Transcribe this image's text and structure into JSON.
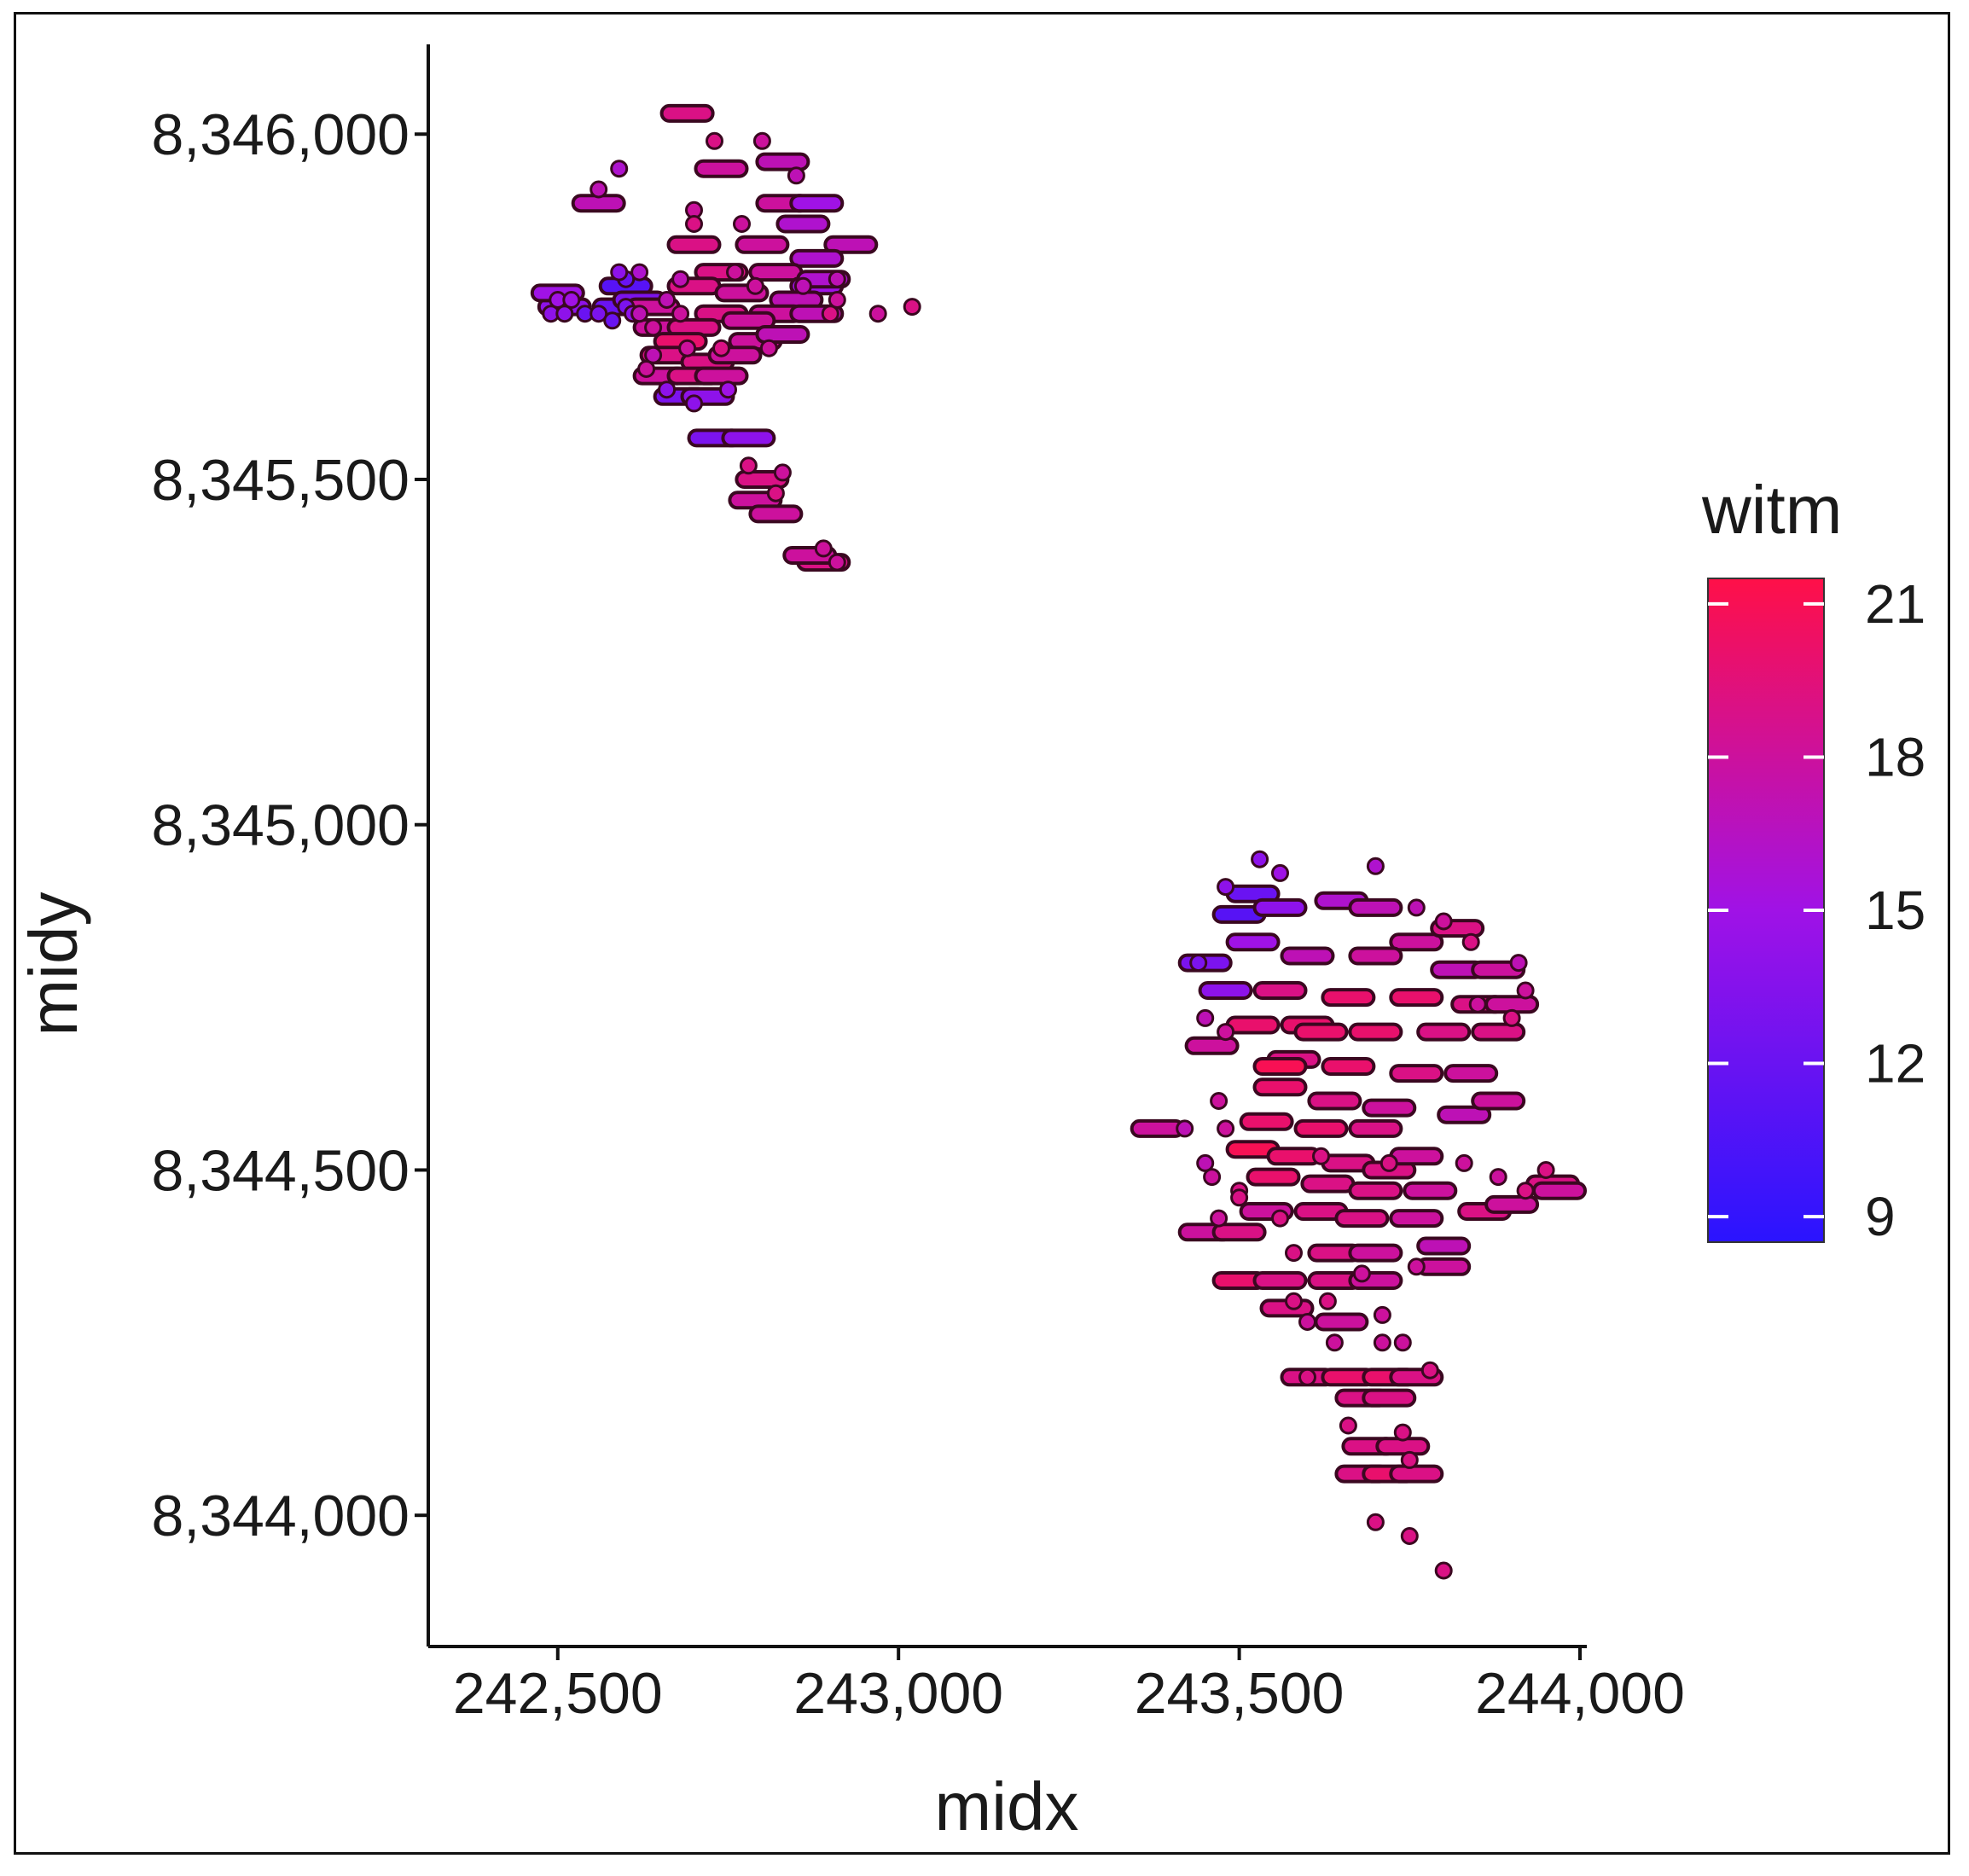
{
  "chart_data": {
    "type": "scatter",
    "xlabel": "midx",
    "ylabel": "midy",
    "x_ticks": [
      242500,
      243000,
      243500,
      244000
    ],
    "x_tick_labels": [
      "242,500",
      "243,000",
      "243,500",
      "244,000"
    ],
    "y_ticks": [
      8344000,
      8344500,
      8345000,
      8345500,
      8346000
    ],
    "y_tick_labels": [
      "8,344,000",
      "8,344,500",
      "8,345,000",
      "8,345,500",
      "8,346,000"
    ],
    "xlim": [
      242310,
      244010
    ],
    "ylim": [
      8343810,
      8346130
    ],
    "legend": {
      "title": "witm",
      "min": 8.5,
      "max": 21.5,
      "ticks": [
        9,
        12,
        15,
        18,
        21
      ],
      "colors": [
        "#2a14ff",
        "#a012e6",
        "#ff1048"
      ],
      "placement": "right"
    },
    "series": [
      {
        "marker": "dash",
        "points": [
          [
            242690,
            8346030,
            19
          ],
          [
            242740,
            8345950,
            18
          ],
          [
            242830,
            8345960,
            17
          ],
          [
            242830,
            8345900,
            18
          ],
          [
            242560,
            8345900,
            17
          ],
          [
            242860,
            8345870,
            16
          ],
          [
            242880,
            8345900,
            15
          ],
          [
            242700,
            8345840,
            19
          ],
          [
            242800,
            8345840,
            18
          ],
          [
            242930,
            8345840,
            17
          ],
          [
            242880,
            8345820,
            16
          ],
          [
            242740,
            8345800,
            19
          ],
          [
            242820,
            8345800,
            18
          ],
          [
            242880,
            8345780,
            15
          ],
          [
            242890,
            8345790,
            16
          ],
          [
            242700,
            8345780,
            19
          ],
          [
            242770,
            8345770,
            18
          ],
          [
            242850,
            8345760,
            17
          ],
          [
            242600,
            8345780,
            11
          ],
          [
            242590,
            8345750,
            12
          ],
          [
            242620,
            8345760,
            13
          ],
          [
            242510,
            8345750,
            14
          ],
          [
            242500,
            8345770,
            15
          ],
          [
            242640,
            8345750,
            18
          ],
          [
            242740,
            8345740,
            19
          ],
          [
            242820,
            8345740,
            18
          ],
          [
            242880,
            8345740,
            17
          ],
          [
            242650,
            8345720,
            18
          ],
          [
            242700,
            8345720,
            19
          ],
          [
            242780,
            8345730,
            18
          ],
          [
            242680,
            8345700,
            20
          ],
          [
            242790,
            8345700,
            18
          ],
          [
            242830,
            8345710,
            17
          ],
          [
            242660,
            8345680,
            19
          ],
          [
            242720,
            8345670,
            19
          ],
          [
            242760,
            8345680,
            18
          ],
          [
            242650,
            8345650,
            18
          ],
          [
            242700,
            8345650,
            19
          ],
          [
            242740,
            8345650,
            18
          ],
          [
            242680,
            8345620,
            13
          ],
          [
            242720,
            8345620,
            14
          ],
          [
            242730,
            8345560,
            13
          ],
          [
            242780,
            8345560,
            14
          ],
          [
            242800,
            8345500,
            19
          ],
          [
            242790,
            8345470,
            18
          ],
          [
            242820,
            8345450,
            18
          ],
          [
            242890,
            8345380,
            19
          ],
          [
            242870,
            8345390,
            18
          ],
          [
            243520,
            8344900,
            12
          ],
          [
            243500,
            8344870,
            11
          ],
          [
            243560,
            8344880,
            14
          ],
          [
            243650,
            8344890,
            16
          ],
          [
            243700,
            8344880,
            17
          ],
          [
            243760,
            8344830,
            18
          ],
          [
            243820,
            8344850,
            19
          ],
          [
            243450,
            8344800,
            13
          ],
          [
            243520,
            8344830,
            15
          ],
          [
            243600,
            8344810,
            17
          ],
          [
            243700,
            8344810,
            18
          ],
          [
            243820,
            8344790,
            17
          ],
          [
            243880,
            8344790,
            18
          ],
          [
            243480,
            8344760,
            14
          ],
          [
            243560,
            8344760,
            19
          ],
          [
            243660,
            8344750,
            20
          ],
          [
            243760,
            8344750,
            20
          ],
          [
            243850,
            8344740,
            19
          ],
          [
            243900,
            8344740,
            18
          ],
          [
            243520,
            8344710,
            20
          ],
          [
            243600,
            8344710,
            20
          ],
          [
            243700,
            8344700,
            20
          ],
          [
            243800,
            8344700,
            19
          ],
          [
            243880,
            8344700,
            19
          ],
          [
            243460,
            8344680,
            18
          ],
          [
            243580,
            8344660,
            19
          ],
          [
            243660,
            8344650,
            20
          ],
          [
            243760,
            8344640,
            19
          ],
          [
            243840,
            8344640,
            18
          ],
          [
            243560,
            8344620,
            20
          ],
          [
            243640,
            8344600,
            19
          ],
          [
            243720,
            8344590,
            18
          ],
          [
            243830,
            8344580,
            17
          ],
          [
            243880,
            8344600,
            18
          ],
          [
            243540,
            8344570,
            20
          ],
          [
            243620,
            8344560,
            20
          ],
          [
            243700,
            8344560,
            19
          ],
          [
            243380,
            8344560,
            18
          ],
          [
            243520,
            8344530,
            21
          ],
          [
            243580,
            8344520,
            20
          ],
          [
            243660,
            8344510,
            19
          ],
          [
            243720,
            8344500,
            19
          ],
          [
            243760,
            8344520,
            18
          ],
          [
            243550,
            8344490,
            20
          ],
          [
            243630,
            8344480,
            19
          ],
          [
            243700,
            8344470,
            19
          ],
          [
            243780,
            8344470,
            18
          ],
          [
            243540,
            8344440,
            18
          ],
          [
            243620,
            8344440,
            19
          ],
          [
            243680,
            8344430,
            19
          ],
          [
            243760,
            8344430,
            18
          ],
          [
            243860,
            8344440,
            19
          ],
          [
            243900,
            8344450,
            18
          ],
          [
            243960,
            8344480,
            19
          ],
          [
            243970,
            8344470,
            18
          ],
          [
            243450,
            8344410,
            18
          ],
          [
            243500,
            8344410,
            19
          ],
          [
            243640,
            8344380,
            19
          ],
          [
            243700,
            8344380,
            18
          ],
          [
            243800,
            8344390,
            17
          ],
          [
            243800,
            8344360,
            18
          ],
          [
            243500,
            8344340,
            20
          ],
          [
            243560,
            8344340,
            19
          ],
          [
            243640,
            8344340,
            19
          ],
          [
            243700,
            8344340,
            18
          ],
          [
            243570,
            8344300,
            19
          ],
          [
            243650,
            8344280,
            18
          ],
          [
            243600,
            8344200,
            19
          ],
          [
            243660,
            8344200,
            20
          ],
          [
            243720,
            8344200,
            20
          ],
          [
            243760,
            8344200,
            19
          ],
          [
            243680,
            8344170,
            19
          ],
          [
            243720,
            8344170,
            19
          ],
          [
            243690,
            8344100,
            19
          ],
          [
            243740,
            8344100,
            19
          ],
          [
            243680,
            8344060,
            19
          ],
          [
            243720,
            8344060,
            20
          ],
          [
            243760,
            8344060,
            19
          ],
          [
            243560,
            8344650,
            21
          ],
          [
            243620,
            8344700,
            20
          ]
        ]
      },
      {
        "marker": "dot",
        "points": [
          [
            242560,
            8345920,
            17
          ],
          [
            242590,
            8345950,
            16
          ],
          [
            242730,
            8345990,
            19
          ],
          [
            242800,
            8345990,
            18
          ],
          [
            242850,
            8345940,
            17
          ],
          [
            242700,
            8345890,
            18
          ],
          [
            242700,
            8345870,
            19
          ],
          [
            242770,
            8345870,
            18
          ],
          [
            242620,
            8345800,
            16
          ],
          [
            242680,
            8345790,
            17
          ],
          [
            242760,
            8345800,
            18
          ],
          [
            242790,
            8345780,
            18
          ],
          [
            242860,
            8345780,
            17
          ],
          [
            242910,
            8345760,
            18
          ],
          [
            242910,
            8345790,
            17
          ],
          [
            242500,
            8345760,
            15
          ],
          [
            242600,
            8345750,
            13
          ],
          [
            242610,
            8345740,
            14
          ],
          [
            242490,
            8345740,
            14
          ],
          [
            242510,
            8345740,
            14
          ],
          [
            242520,
            8345760,
            15
          ],
          [
            242540,
            8345740,
            12
          ],
          [
            242560,
            8345740,
            13
          ],
          [
            242580,
            8345730,
            12
          ],
          [
            242620,
            8345740,
            17
          ],
          [
            242660,
            8345760,
            17
          ],
          [
            242680,
            8345740,
            18
          ],
          [
            242900,
            8345740,
            19
          ],
          [
            242970,
            8345740,
            18
          ],
          [
            243020,
            8345750,
            19
          ],
          [
            242640,
            8345720,
            18
          ],
          [
            242690,
            8345690,
            18
          ],
          [
            242740,
            8345690,
            19
          ],
          [
            242810,
            8345690,
            18
          ],
          [
            242640,
            8345680,
            17
          ],
          [
            242630,
            8345660,
            18
          ],
          [
            242660,
            8345630,
            14
          ],
          [
            242700,
            8345610,
            14
          ],
          [
            242750,
            8345630,
            15
          ],
          [
            242780,
            8345520,
            19
          ],
          [
            242830,
            8345510,
            18
          ],
          [
            242820,
            8345480,
            19
          ],
          [
            242890,
            8345400,
            18
          ],
          [
            242910,
            8345380,
            18
          ],
          [
            242600,
            8345790,
            12
          ],
          [
            242590,
            8345800,
            14
          ],
          [
            243530,
            8344950,
            14
          ],
          [
            243560,
            8344930,
            15
          ],
          [
            243480,
            8344910,
            14
          ],
          [
            243700,
            8344940,
            16
          ],
          [
            243760,
            8344880,
            17
          ],
          [
            243800,
            8344860,
            18
          ],
          [
            243840,
            8344830,
            19
          ],
          [
            243440,
            8344800,
            13
          ],
          [
            243450,
            8344720,
            17
          ],
          [
            243480,
            8344700,
            18
          ],
          [
            243850,
            8344740,
            18
          ],
          [
            243900,
            8344720,
            19
          ],
          [
            243920,
            8344760,
            18
          ],
          [
            243910,
            8344800,
            17
          ],
          [
            243470,
            8344600,
            18
          ],
          [
            243480,
            8344560,
            18
          ],
          [
            243420,
            8344560,
            17
          ],
          [
            243450,
            8344510,
            17
          ],
          [
            243460,
            8344490,
            18
          ],
          [
            243500,
            8344470,
            19
          ],
          [
            243620,
            8344520,
            19
          ],
          [
            243720,
            8344510,
            19
          ],
          [
            243830,
            8344510,
            18
          ],
          [
            243880,
            8344490,
            18
          ],
          [
            243920,
            8344470,
            19
          ],
          [
            243950,
            8344500,
            19
          ],
          [
            243470,
            8344430,
            18
          ],
          [
            243500,
            8344460,
            19
          ],
          [
            243560,
            8344430,
            19
          ],
          [
            243580,
            8344380,
            19
          ],
          [
            243680,
            8344350,
            18
          ],
          [
            243760,
            8344360,
            18
          ],
          [
            243580,
            8344310,
            19
          ],
          [
            243600,
            8344280,
            18
          ],
          [
            243630,
            8344310,
            19
          ],
          [
            243710,
            8344290,
            18
          ],
          [
            243710,
            8344250,
            18
          ],
          [
            243640,
            8344250,
            18
          ],
          [
            243740,
            8344250,
            18
          ],
          [
            243600,
            8344200,
            19
          ],
          [
            243780,
            8344210,
            19
          ],
          [
            243660,
            8344130,
            19
          ],
          [
            243740,
            8344120,
            19
          ],
          [
            243750,
            8344080,
            19
          ],
          [
            243700,
            8343990,
            19
          ],
          [
            243750,
            8343970,
            19
          ],
          [
            243800,
            8343920,
            19
          ]
        ]
      }
    ]
  }
}
